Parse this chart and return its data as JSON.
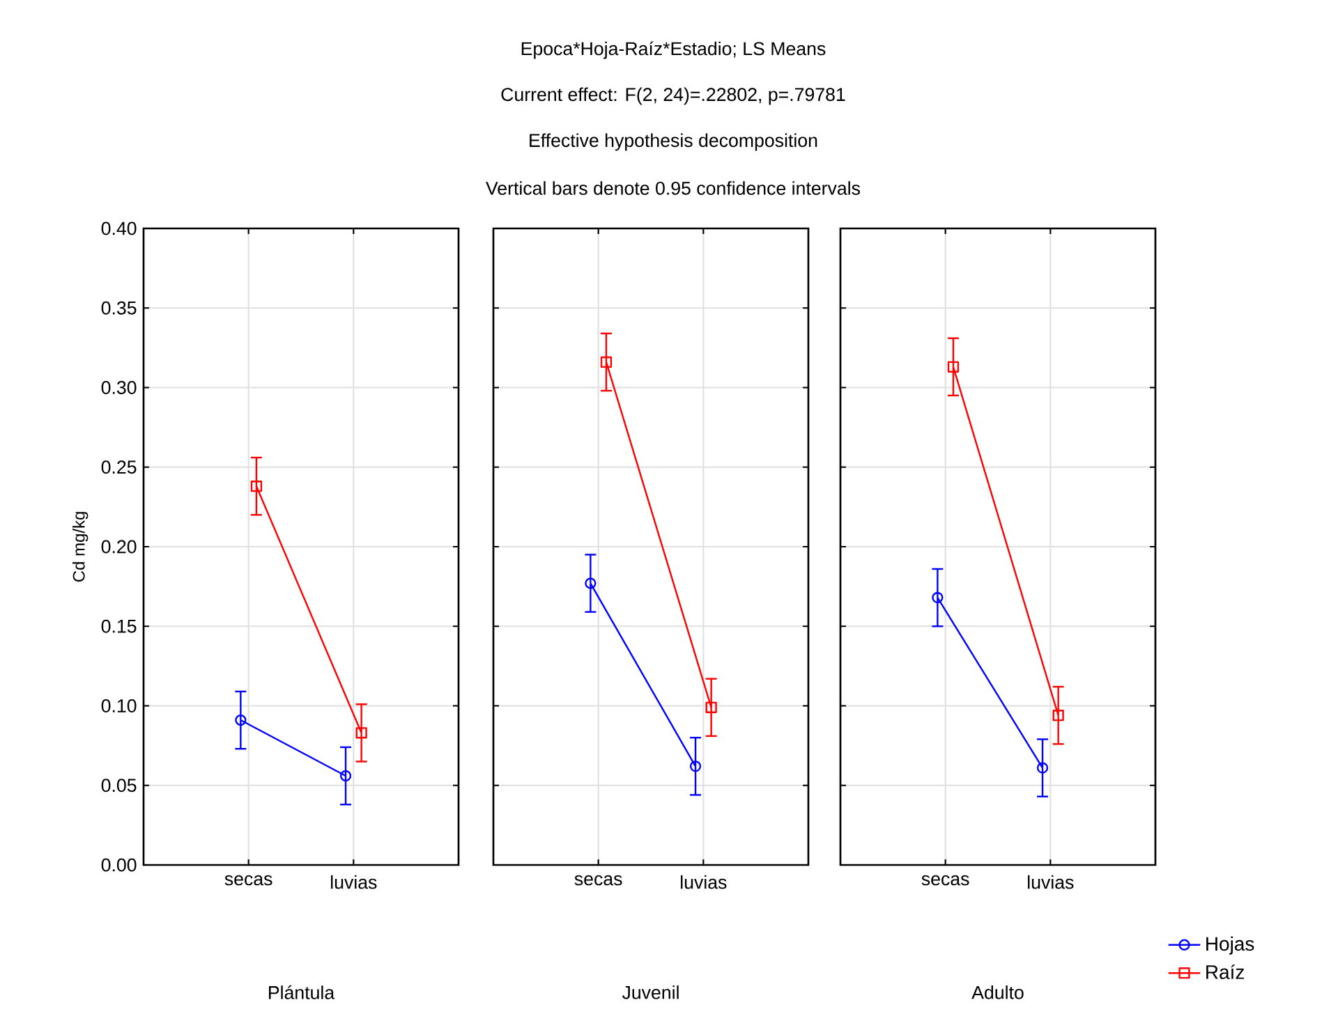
{
  "chart_data": [
    {
      "type": "line",
      "xlabel": "Plántula",
      "ylabel": "Cd mg/kg",
      "categories": [
        "secas",
        "luvias"
      ],
      "series": [
        {
          "color": "#0000ff",
          "marker": "circle",
          "values": [
            0.091,
            0.056
          ],
          "errors": [
            0.018,
            0.018
          ]
        },
        {
          "color": "#ff0000",
          "marker": "square",
          "values": [
            0.238,
            0.083
          ],
          "errors": [
            0.018,
            0.018
          ]
        }
      ],
      "ylim": [
        0,
        0.4
      ],
      "yticks": [
        {
          "value": 0,
          "label": "0.00"
        },
        {
          "value": 0.05,
          "label": "0.05"
        },
        {
          "value": 0.1,
          "label": "0.10"
        },
        {
          "value": 0.15,
          "label": "0.15"
        },
        {
          "value": 0.2,
          "label": "0.20"
        },
        {
          "value": 0.25,
          "label": "0.25"
        },
        {
          "value": 0.3,
          "label": "0.30"
        },
        {
          "value": 0.35,
          "label": "0.35"
        },
        {
          "value": 0.4,
          "label": "0.40"
        }
      ],
      "grid": true
    },
    {
      "type": "line",
      "title": "Epoca*Hoja-Raíz*Estadio; LS Means",
      "subtitle": "Current effect: F(2, 24)=.22802, p=.79781",
      "annotations": [
        "Effective hypothesis decomposition",
        "Vertical bars denote 0.95 confidence intervals"
      ],
      "xlabel": "Juvenil",
      "categories": [
        "secas",
        "luvias"
      ],
      "series": [
        {
          "color": "#0000ff",
          "marker": "circle",
          "values": [
            0.177,
            0.062
          ],
          "errors": [
            0.018,
            0.018
          ]
        },
        {
          "color": "#ff0000",
          "marker": "square",
          "values": [
            0.316,
            0.099
          ],
          "errors": [
            0.018,
            0.018
          ]
        }
      ],
      "ylim": [
        0,
        0.4
      ],
      "yticks": [
        0,
        0.05,
        0.1,
        0.15,
        0.2,
        0.25,
        0.3,
        0.35,
        0.4
      ],
      "grid": true,
      "tick_labels": "x"
    },
    {
      "type": "line",
      "xlabel": "Adulto",
      "categories": [
        "secas",
        "luvias"
      ],
      "series": [
        {
          "name": "Hojas",
          "color": "#0000ff",
          "marker": "circle",
          "values": [
            0.168,
            0.061
          ],
          "errors": [
            0.018,
            0.018
          ]
        },
        {
          "name": "Raíz",
          "color": "#ff0000",
          "marker": "square",
          "values": [
            0.313,
            0.094
          ],
          "errors": [
            0.018,
            0.018
          ]
        }
      ],
      "ylim": [
        0,
        0.4
      ],
      "yticks": [
        0,
        0.05,
        0.1,
        0.15,
        0.2,
        0.25,
        0.3,
        0.35,
        0.4
      ],
      "grid": true,
      "tick_labels": "x",
      "legend": "bottom right"
    }
  ]
}
